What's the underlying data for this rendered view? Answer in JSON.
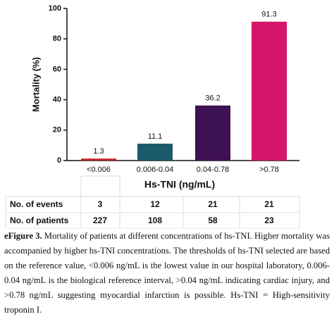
{
  "chart_data": {
    "type": "bar",
    "ylabel": "Mortality (%)",
    "xlabel": "Hs-TNI (ng/mL)",
    "categories": [
      "<0.006",
      "0.006-0.04",
      "0.04-0.78",
      ">0.78"
    ],
    "values": [
      1.3,
      11.1,
      36.2,
      91.3
    ],
    "colors": [
      "#c4262b",
      "#1b5a6a",
      "#3e1152",
      "#d3166b"
    ],
    "ylim": [
      0,
      100
    ],
    "yticks": [
      0,
      20,
      40,
      60,
      80,
      100
    ]
  },
  "table": {
    "rows": [
      [
        "No. of events",
        3,
        12,
        21,
        21
      ],
      [
        "No. of patients",
        227,
        108,
        58,
        23
      ]
    ]
  },
  "caption": {
    "label": "eFigure 3.",
    "text": "Mortality of patients at different concentrations of hs-TNI. Higher mortality was accompanied by higher hs-TNI concentrations. The thresholds of hs-TNI selected are based on the reference value, <0.006 ng/mL is the lowest value in our hospital laboratory, 0.006-0.04 ng/mL is the biological reference interval, >0.04 ng/mL indicating cardiac injury, and >0.78 ng/mL suggesting myocardial infarction is possible. Hs-TNI = High-sensitivity troponin I."
  }
}
